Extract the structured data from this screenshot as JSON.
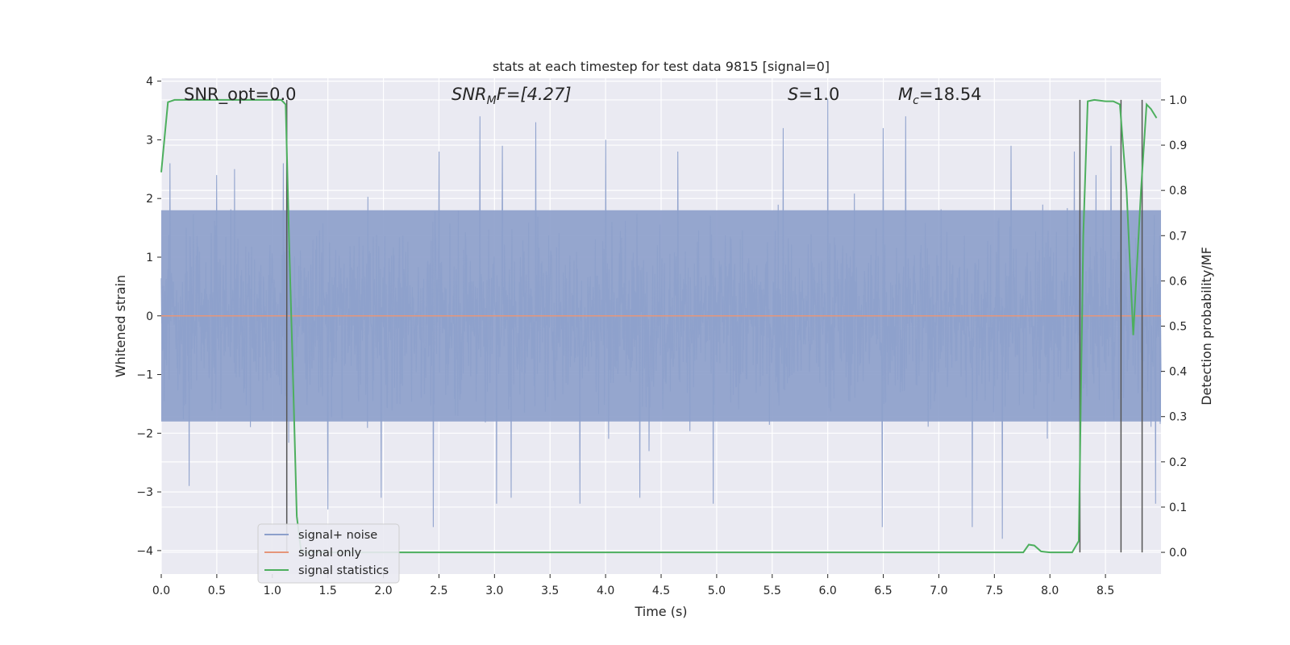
{
  "chart_data": {
    "type": "line",
    "title": "stats at each timestep for test data 9815 [signal=0]",
    "xlabel": "Time (s)",
    "ylabel": "Whitened strain",
    "y2label": "Detection probability/MF",
    "xlim": [
      0,
      9
    ],
    "ylim": [
      -4.4,
      4.05
    ],
    "y2lim": [
      -0.048,
      1.048
    ],
    "x_ticks": [
      0.0,
      0.5,
      1.0,
      1.5,
      2.0,
      2.5,
      3.0,
      3.5,
      4.0,
      4.5,
      5.0,
      5.5,
      6.0,
      6.5,
      7.0,
      7.5,
      8.0,
      8.5
    ],
    "x_tick_labels": [
      "0.0",
      "0.5",
      "1.0",
      "1.5",
      "2.0",
      "2.5",
      "3.0",
      "3.5",
      "4.0",
      "4.5",
      "5.0",
      "5.5",
      "6.0",
      "6.5",
      "7.0",
      "7.5",
      "8.0",
      "8.5"
    ],
    "y_ticks": [
      4,
      3,
      2,
      1,
      0,
      -1,
      -2,
      -3,
      -4
    ],
    "y_tick_labels": [
      "4",
      "3",
      "2",
      "1",
      "0",
      "−1",
      "−2",
      "−3",
      "−4"
    ],
    "y2_ticks": [
      1.0,
      0.9,
      0.8,
      0.7,
      0.6,
      0.5,
      0.4,
      0.3,
      0.2,
      0.1,
      0.0
    ],
    "y2_tick_labels": [
      "1.0",
      "0.9",
      "0.8",
      "0.7",
      "0.6",
      "0.5",
      "0.4",
      "0.3",
      "0.2",
      "0.1",
      "0.0"
    ],
    "annotations": {
      "snr_opt": "SNR_opt=0.0",
      "snr_mf_name": "SNR",
      "snr_mf_sub": "M",
      "snr_mf_rest": "F=[4.27]",
      "s_name": "S",
      "s_rest": "=1.0",
      "mc_name": "M",
      "mc_sub": "c",
      "mc_rest": "=18.54"
    },
    "legend": {
      "placement": "lower-left",
      "entries": [
        "signal+ noise",
        "signal only",
        "signal statistics"
      ]
    },
    "colors": {
      "noise": "#8da0cb",
      "signal": "#e5967a",
      "stats": "#4daf5e",
      "vlines": "#555555",
      "plot_bg": "#eaeaf2",
      "grid": "#ffffff"
    },
    "series": [
      {
        "name": "signal+ noise",
        "kind": "noise-band",
        "x_range": [
          0,
          9
        ],
        "core_amplitude": 1.8,
        "peaks_upper": [
          [
            0.08,
            2.6
          ],
          [
            0.5,
            2.4
          ],
          [
            0.66,
            2.5
          ],
          [
            1.1,
            2.6
          ],
          [
            2.5,
            2.8
          ],
          [
            2.87,
            3.4
          ],
          [
            3.07,
            2.9
          ],
          [
            3.37,
            3.3
          ],
          [
            4.0,
            3.0
          ],
          [
            4.65,
            2.8
          ],
          [
            5.6,
            3.2
          ],
          [
            6.0,
            3.7
          ],
          [
            6.5,
            3.2
          ],
          [
            6.7,
            3.4
          ],
          [
            7.65,
            2.9
          ],
          [
            8.22,
            2.8
          ],
          [
            8.55,
            2.9
          ],
          [
            8.95,
            2.9
          ]
        ],
        "peaks_lower": [
          [
            0.25,
            -2.9
          ],
          [
            1.5,
            -3.3
          ],
          [
            1.98,
            -3.1
          ],
          [
            2.45,
            -3.6
          ],
          [
            3.02,
            -3.2
          ],
          [
            3.15,
            -3.1
          ],
          [
            3.77,
            -3.2
          ],
          [
            4.31,
            -3.1
          ],
          [
            4.97,
            -3.2
          ],
          [
            6.49,
            -3.6
          ],
          [
            7.3,
            -3.6
          ],
          [
            7.57,
            -3.8
          ],
          [
            8.95,
            -3.2
          ]
        ],
        "values_summary": "dense whitened noise, roughly within ±2"
      },
      {
        "name": "signal only",
        "kind": "line",
        "axis": "left",
        "x": [
          0,
          9
        ],
        "y": [
          0,
          0
        ]
      },
      {
        "name": "signal statistics",
        "kind": "line",
        "axis": "right",
        "x": [
          0.0,
          0.06,
          0.12,
          0.5,
          1.0,
          1.08,
          1.12,
          1.15,
          1.19,
          1.22,
          1.26,
          1.5,
          2.0,
          3.0,
          4.0,
          5.0,
          6.0,
          7.0,
          7.5,
          7.76,
          7.81,
          7.86,
          7.92,
          8.0,
          8.1,
          8.2,
          8.26,
          8.3,
          8.34,
          8.4,
          8.5,
          8.57,
          8.63,
          8.69,
          8.75,
          8.82,
          8.87,
          8.91,
          8.96
        ],
        "y": [
          0.84,
          0.995,
          1.0,
          1.0,
          1.0,
          1.0,
          0.99,
          0.7,
          0.35,
          0.08,
          0.0,
          0.0,
          0.0,
          0.0,
          0.0,
          0.0,
          0.0,
          0.0,
          0.0,
          0.0,
          0.017,
          0.015,
          0.002,
          0.0,
          0.0,
          0.0,
          0.025,
          0.7,
          0.997,
          1.0,
          0.997,
          0.997,
          0.99,
          0.8,
          0.48,
          0.8,
          0.99,
          0.98,
          0.96
        ]
      }
    ],
    "vertical_lines": {
      "axis": "right",
      "x": [
        1.13,
        8.27,
        8.64,
        8.83
      ],
      "y_from": 0.0,
      "y_to": 1.0
    }
  }
}
